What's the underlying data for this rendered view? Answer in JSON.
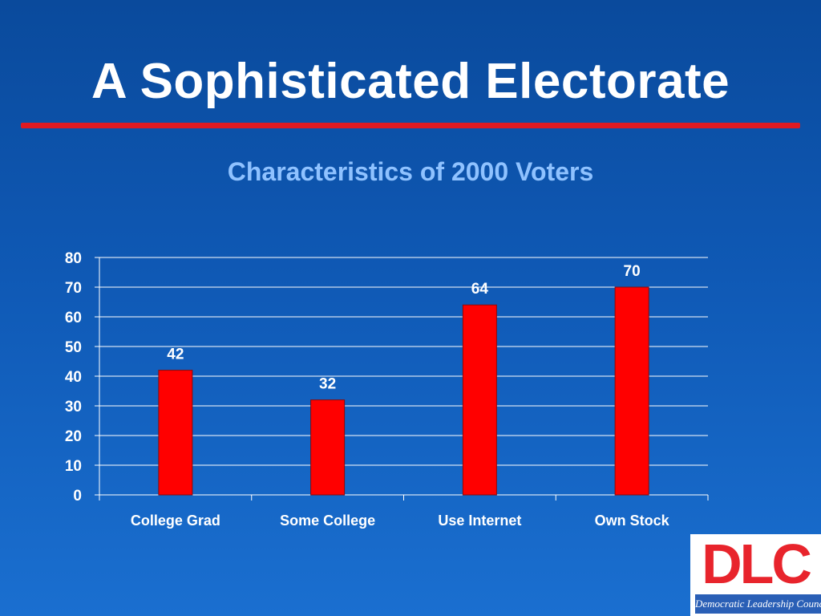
{
  "slide": {
    "title": "A Sophisticated Electorate",
    "accent_color": "#e01a22"
  },
  "logo": {
    "letters": "DLC",
    "name": "Democratic Leadership Council"
  },
  "chart_data": {
    "type": "bar",
    "title": "Characteristics of 2000 Voters",
    "categories": [
      "College Grad",
      "Some College",
      "Use Internet",
      "Own Stock"
    ],
    "values": [
      42,
      32,
      64,
      70
    ],
    "data_labels": [
      "42",
      "32",
      "64",
      "70"
    ],
    "ylim": [
      0,
      80
    ],
    "yticks": [
      0,
      10,
      20,
      30,
      40,
      50,
      60,
      70,
      80
    ],
    "xlabel": "",
    "ylabel": "",
    "grid": true,
    "legend": "none",
    "bar_color": "#ff0000",
    "text_color": "#ffffff"
  }
}
